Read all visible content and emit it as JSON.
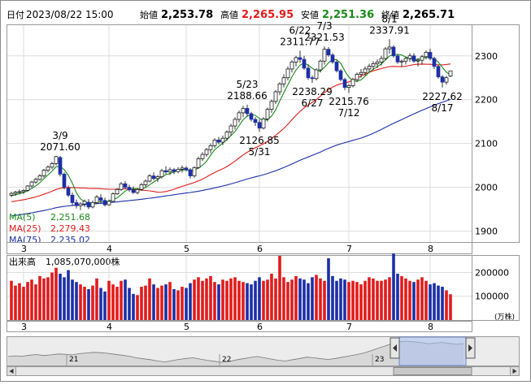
{
  "header": {
    "date_label": "日付",
    "datetime": "2023/08/22 15:00",
    "open_label": "始値",
    "open_value": "2,253.78",
    "high_label": "高値",
    "high_value": "2,265.95",
    "low_label": "安値",
    "low_value": "2,251.36",
    "close_label": "終値",
    "close_value": "2,265.71"
  },
  "colors": {
    "up": "#e21b1b",
    "down": "#1c2fa8",
    "ma5": "#1a8a1a",
    "ma25": "#e21b1b",
    "ma75": "#1c2fa8",
    "high_text": "#e21b1b",
    "low_text": "#1a8a1a",
    "navigator_fill": "#a9bff0"
  },
  "legend": {
    "ma5_label": "MA(5)",
    "ma5_value": "2,251.68",
    "ma25_label": "MA(25)",
    "ma25_value": "2,279.43",
    "ma75_label": "MA(75)",
    "ma75_value": "2,235.02"
  },
  "annotations": [
    {
      "date": "3/9",
      "value": "2071.60",
      "kind": "high"
    },
    {
      "date": "5/23",
      "value": "2188.66",
      "kind": "high"
    },
    {
      "date": "5/31",
      "value": "2126.85",
      "kind": "low"
    },
    {
      "date": "6/22",
      "value": "2311.77",
      "kind": "high"
    },
    {
      "date": "6/27",
      "value": "2238.29",
      "kind": "low"
    },
    {
      "date": "7/3",
      "value": "2321.53",
      "kind": "high"
    },
    {
      "date": "7/12",
      "value": "2215.76",
      "kind": "low"
    },
    {
      "date": "8/1",
      "value": "2337.91",
      "kind": "high"
    },
    {
      "date": "8/17",
      "value": "2227.62",
      "kind": "low"
    }
  ],
  "volume_panel": {
    "title": "出来高",
    "latest": "1,085,070,000株",
    "unit_label": "(万株)"
  },
  "navigator": {
    "year_labels": [
      "21",
      "22",
      "23"
    ]
  },
  "chart_data": {
    "type": "candlestick",
    "price_axis": {
      "ticks": [
        1900,
        2000,
        2100,
        2200,
        2300
      ],
      "range": [
        1875,
        2370
      ]
    },
    "volume_axis": {
      "ticks": [
        100000,
        200000
      ],
      "range": [
        0,
        270000
      ]
    },
    "month_labels": [
      {
        "label": "3",
        "index": 3
      },
      {
        "label": "4",
        "index": 24
      },
      {
        "label": "5",
        "index": 43
      },
      {
        "label": "6",
        "index": 61
      },
      {
        "label": "7",
        "index": 83
      },
      {
        "label": "8",
        "index": 103
      }
    ],
    "ohlc": [
      [
        1982,
        1990,
        1978,
        1986
      ],
      [
        1986,
        1992,
        1981,
        1989
      ],
      [
        1989,
        1995,
        1984,
        1990
      ],
      [
        1990,
        1996,
        1985,
        1993
      ],
      [
        1993,
        2005,
        1990,
        2003
      ],
      [
        2003,
        2015,
        1999,
        2012
      ],
      [
        2012,
        2022,
        2008,
        2018
      ],
      [
        2018,
        2030,
        2015,
        2026
      ],
      [
        2026,
        2042,
        2022,
        2039
      ],
      [
        2039,
        2050,
        2034,
        2046
      ],
      [
        2046,
        2058,
        2041,
        2054
      ],
      [
        2054,
        2072,
        2050,
        2070
      ],
      [
        2068,
        2071.6,
        2025,
        2030
      ],
      [
        2030,
        2034,
        1995,
        2000
      ],
      [
        1998,
        2004,
        1978,
        1982
      ],
      [
        1982,
        1988,
        1958,
        1965
      ],
      [
        1965,
        1972,
        1952,
        1958
      ],
      [
        1958,
        1966,
        1948,
        1962
      ],
      [
        1962,
        1972,
        1955,
        1968
      ],
      [
        1966,
        1973,
        1950,
        1955
      ],
      [
        1955,
        1970,
        1952,
        1965
      ],
      [
        1965,
        1982,
        1962,
        1978
      ],
      [
        1976,
        1984,
        1964,
        1970
      ],
      [
        1970,
        1976,
        1956,
        1960
      ],
      [
        1960,
        1972,
        1958,
        1968
      ],
      [
        1968,
        1988,
        1966,
        1985
      ],
      [
        1985,
        1998,
        1982,
        1995
      ],
      [
        1995,
        2012,
        1992,
        2008
      ],
      [
        2008,
        2014,
        1996,
        2000
      ],
      [
        2000,
        2006,
        1990,
        1994
      ],
      [
        1994,
        2002,
        1985,
        1988
      ],
      [
        1988,
        1998,
        1984,
        1995
      ],
      [
        1995,
        2010,
        1992,
        2006
      ],
      [
        2006,
        2018,
        2000,
        2014
      ],
      [
        2014,
        2030,
        2011,
        2026
      ],
      [
        2026,
        2034,
        2016,
        2020
      ],
      [
        2020,
        2028,
        2012,
        2024
      ],
      [
        2024,
        2042,
        2020,
        2038
      ],
      [
        2038,
        2048,
        2030,
        2035
      ],
      [
        2035,
        2045,
        2028,
        2040
      ],
      [
        2040,
        2044,
        2030,
        2036
      ],
      [
        2036,
        2046,
        2032,
        2041
      ],
      [
        2041,
        2050,
        2034,
        2044
      ],
      [
        2044,
        2048,
        2036,
        2040
      ],
      [
        2040,
        2044,
        2020,
        2026
      ],
      [
        2026,
        2048,
        2022,
        2045
      ],
      [
        2045,
        2070,
        2042,
        2065
      ],
      [
        2065,
        2080,
        2060,
        2075
      ],
      [
        2075,
        2090,
        2070,
        2086
      ],
      [
        2086,
        2100,
        2078,
        2095
      ],
      [
        2095,
        2112,
        2090,
        2108
      ],
      [
        2108,
        2115,
        2098,
        2103
      ],
      [
        2103,
        2118,
        2096,
        2112
      ],
      [
        2112,
        2130,
        2106,
        2126
      ],
      [
        2126,
        2145,
        2118,
        2140
      ],
      [
        2140,
        2160,
        2132,
        2155
      ],
      [
        2155,
        2175,
        2148,
        2170
      ],
      [
        2170,
        2186,
        2160,
        2180
      ],
      [
        2180,
        2188.66,
        2162,
        2168
      ],
      [
        2168,
        2172,
        2150,
        2155
      ],
      [
        2155,
        2160,
        2140,
        2148
      ],
      [
        2148,
        2155,
        2126.85,
        2135
      ],
      [
        2135,
        2160,
        2132,
        2156
      ],
      [
        2156,
        2182,
        2150,
        2178
      ],
      [
        2178,
        2200,
        2170,
        2196
      ],
      [
        2196,
        2222,
        2190,
        2218
      ],
      [
        2218,
        2240,
        2210,
        2236
      ],
      [
        2236,
        2258,
        2228,
        2250
      ],
      [
        2250,
        2276,
        2244,
        2270
      ],
      [
        2270,
        2290,
        2262,
        2286
      ],
      [
        2286,
        2300,
        2276,
        2296
      ],
      [
        2296,
        2311.77,
        2284,
        2292
      ],
      [
        2292,
        2300,
        2268,
        2272
      ],
      [
        2272,
        2280,
        2245,
        2250
      ],
      [
        2250,
        2255,
        2238.29,
        2248
      ],
      [
        2248,
        2272,
        2244,
        2268
      ],
      [
        2268,
        2292,
        2262,
        2288
      ],
      [
        2288,
        2321.53,
        2280,
        2315
      ],
      [
        2315,
        2320,
        2298,
        2302
      ],
      [
        2302,
        2306,
        2282,
        2286
      ],
      [
        2286,
        2290,
        2262,
        2266
      ],
      [
        2266,
        2270,
        2242,
        2246
      ],
      [
        2246,
        2250,
        2222,
        2228
      ],
      [
        2228,
        2236,
        2215.76,
        2232
      ],
      [
        2232,
        2250,
        2228,
        2246
      ],
      [
        2246,
        2262,
        2240,
        2258
      ],
      [
        2258,
        2270,
        2250,
        2262
      ],
      [
        2262,
        2276,
        2255,
        2270
      ],
      [
        2270,
        2282,
        2262,
        2276
      ],
      [
        2276,
        2288,
        2268,
        2282
      ],
      [
        2282,
        2292,
        2272,
        2286
      ],
      [
        2286,
        2300,
        2278,
        2294
      ],
      [
        2294,
        2320,
        2290,
        2316
      ],
      [
        2316,
        2337.91,
        2305,
        2320
      ],
      [
        2320,
        2324,
        2296,
        2300
      ],
      [
        2300,
        2304,
        2282,
        2286
      ],
      [
        2286,
        2292,
        2274,
        2288
      ],
      [
        2288,
        2298,
        2280,
        2294
      ],
      [
        2294,
        2306,
        2286,
        2300
      ],
      [
        2300,
        2306,
        2284,
        2288
      ],
      [
        2288,
        2295,
        2276,
        2290
      ],
      [
        2290,
        2302,
        2280,
        2298
      ],
      [
        2298,
        2312,
        2292,
        2308
      ],
      [
        2308,
        2316,
        2290,
        2294
      ],
      [
        2294,
        2298,
        2270,
        2276
      ],
      [
        2276,
        2280,
        2248,
        2252
      ],
      [
        2252,
        2256,
        2227.62,
        2240
      ],
      [
        2240,
        2254,
        2234,
        2250
      ],
      [
        2253.78,
        2265.95,
        2251.36,
        2265.71
      ]
    ],
    "volume": [
      165000,
      145000,
      155000,
      140000,
      160000,
      170000,
      150000,
      185000,
      175000,
      180000,
      200000,
      220000,
      195000,
      180000,
      210000,
      170000,
      160000,
      150000,
      140000,
      130000,
      145000,
      175000,
      135000,
      120000,
      165000,
      150000,
      140000,
      165000,
      170000,
      135000,
      110000,
      105000,
      140000,
      145000,
      175000,
      150000,
      135000,
      145000,
      150000,
      160000,
      130000,
      125000,
      140000,
      135000,
      155000,
      170000,
      180000,
      165000,
      175000,
      185000,
      160000,
      150000,
      170000,
      165000,
      175000,
      180000,
      165000,
      160000,
      155000,
      150000,
      165000,
      180000,
      165000,
      170000,
      195000,
      175000,
      270000,
      180000,
      160000,
      170000,
      185000,
      175000,
      170000,
      155000,
      180000,
      190000,
      175000,
      165000,
      260000,
      185000,
      165000,
      175000,
      170000,
      160000,
      165000,
      160000,
      150000,
      165000,
      180000,
      175000,
      165000,
      165000,
      170000,
      180000,
      280000,
      195000,
      185000,
      175000,
      165000,
      160000,
      170000,
      180000,
      165000,
      150000,
      155000,
      145000,
      140000,
      125000,
      108507
    ],
    "navigator_series": [
      28200,
      28400,
      28300,
      28600,
      28800,
      28500,
      28700,
      29000,
      28900,
      28700,
      29100,
      29300,
      29500,
      29400,
      29200,
      28900,
      28600,
      28300,
      27800,
      27500,
      27200,
      26800,
      26500,
      26900,
      27300,
      27600,
      27800,
      27400,
      27000,
      26700,
      26400,
      26600,
      27100,
      27500,
      27900,
      28200,
      27800,
      27400,
      27000,
      26800,
      27200,
      27600,
      28000,
      27800,
      27500,
      27300,
      27600,
      28000,
      28400,
      28800,
      29300,
      30000,
      30800,
      31500,
      32300,
      32800,
      33000,
      32800,
      32600,
      32200,
      32400,
      32600,
      32300,
      32000,
      32200
    ]
  }
}
